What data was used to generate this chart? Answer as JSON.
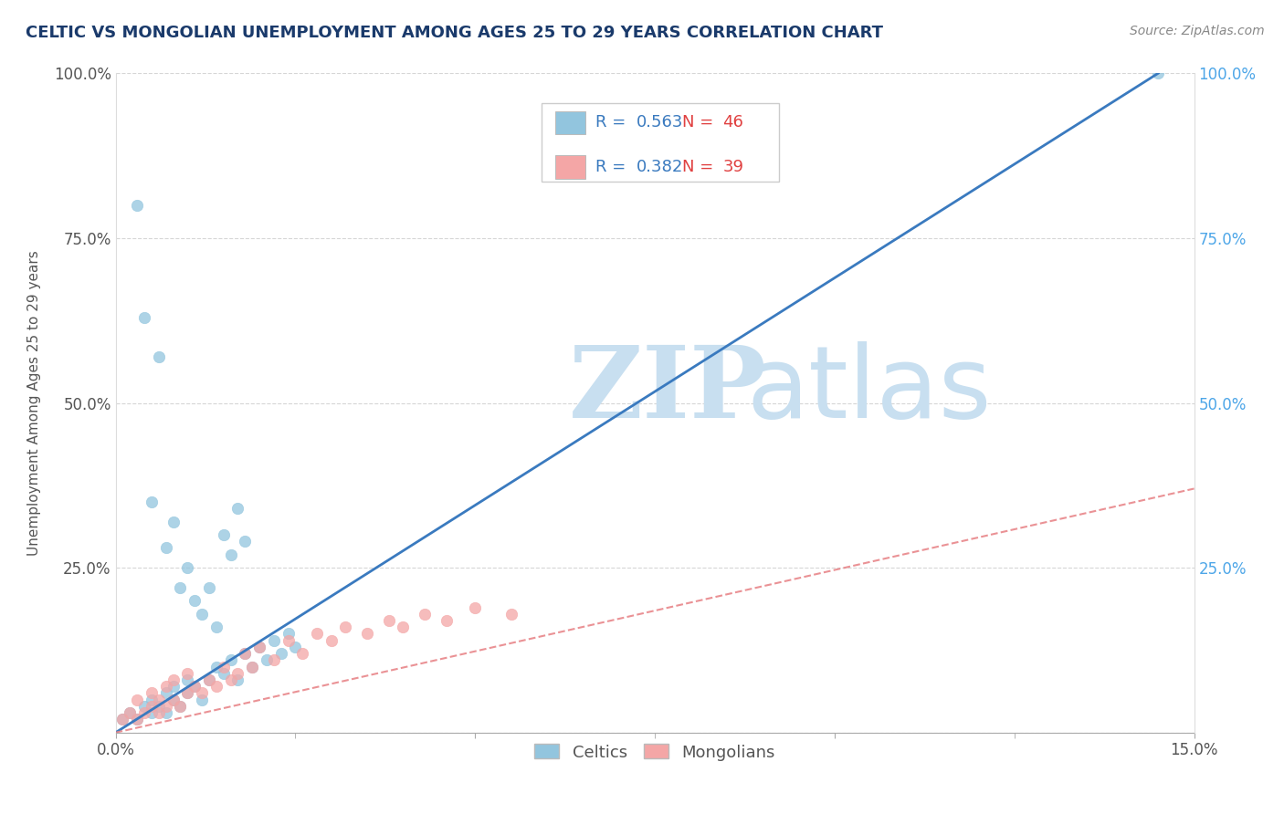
{
  "title": "CELTIC VS MONGOLIAN UNEMPLOYMENT AMONG AGES 25 TO 29 YEARS CORRELATION CHART",
  "source_text": "Source: ZipAtlas.com",
  "ylabel": "Unemployment Among Ages 25 to 29 years",
  "xlim": [
    0.0,
    0.15
  ],
  "ylim": [
    0.0,
    1.0
  ],
  "xtick_positions": [
    0.0,
    0.05,
    0.1,
    0.15
  ],
  "xtick_labels_shown": [
    "0.0%",
    "",
    "",
    "15.0%"
  ],
  "yticks": [
    0.0,
    0.25,
    0.5,
    0.75,
    1.0
  ],
  "ytick_labels_left": [
    "",
    "25.0%",
    "50.0%",
    "75.0%",
    "100.0%"
  ],
  "ytick_labels_right": [
    "",
    "25.0%",
    "50.0%",
    "75.0%",
    "100.0%"
  ],
  "celtic_color": "#92c5de",
  "mongolian_color": "#f4a6a6",
  "celtic_line_color": "#3a7abf",
  "mongolian_line_color": "#e8868a",
  "celtic_R": "0.563",
  "celtic_N": "46",
  "mongolian_R": "0.382",
  "mongolian_N": "39",
  "watermark_zip": "ZIP",
  "watermark_atlas": "atlas",
  "watermark_color": "#c8dff0",
  "background_color": "#ffffff",
  "title_color": "#1a3a6b",
  "title_fontsize": 13,
  "legend_R_color": "#3a7abf",
  "legend_N_color": "#e04040",
  "legend_label1": "Celtics",
  "legend_label2": "Mongolians",
  "celtic_scatter_x": [
    0.001,
    0.002,
    0.003,
    0.004,
    0.005,
    0.005,
    0.006,
    0.007,
    0.007,
    0.008,
    0.008,
    0.009,
    0.01,
    0.01,
    0.011,
    0.012,
    0.013,
    0.014,
    0.015,
    0.016,
    0.017,
    0.018,
    0.019,
    0.02,
    0.021,
    0.022,
    0.023,
    0.024,
    0.025,
    0.003,
    0.004,
    0.005,
    0.006,
    0.007,
    0.008,
    0.009,
    0.01,
    0.011,
    0.012,
    0.013,
    0.014,
    0.015,
    0.016,
    0.017,
    0.018,
    0.145
  ],
  "celtic_scatter_y": [
    0.02,
    0.03,
    0.02,
    0.04,
    0.03,
    0.05,
    0.04,
    0.06,
    0.03,
    0.05,
    0.07,
    0.04,
    0.06,
    0.08,
    0.07,
    0.05,
    0.08,
    0.1,
    0.09,
    0.11,
    0.08,
    0.12,
    0.1,
    0.13,
    0.11,
    0.14,
    0.12,
    0.15,
    0.13,
    0.8,
    0.63,
    0.35,
    0.57,
    0.28,
    0.32,
    0.22,
    0.25,
    0.2,
    0.18,
    0.22,
    0.16,
    0.3,
    0.27,
    0.34,
    0.29,
    1.0
  ],
  "mongolian_scatter_x": [
    0.001,
    0.002,
    0.003,
    0.003,
    0.004,
    0.005,
    0.005,
    0.006,
    0.006,
    0.007,
    0.007,
    0.008,
    0.008,
    0.009,
    0.01,
    0.01,
    0.011,
    0.012,
    0.013,
    0.014,
    0.015,
    0.016,
    0.017,
    0.018,
    0.019,
    0.02,
    0.022,
    0.024,
    0.026,
    0.028,
    0.03,
    0.032,
    0.035,
    0.038,
    0.04,
    0.043,
    0.046,
    0.05,
    0.055
  ],
  "mongolian_scatter_y": [
    0.02,
    0.03,
    0.02,
    0.05,
    0.03,
    0.04,
    0.06,
    0.03,
    0.05,
    0.04,
    0.07,
    0.05,
    0.08,
    0.04,
    0.06,
    0.09,
    0.07,
    0.06,
    0.08,
    0.07,
    0.1,
    0.08,
    0.09,
    0.12,
    0.1,
    0.13,
    0.11,
    0.14,
    0.12,
    0.15,
    0.14,
    0.16,
    0.15,
    0.17,
    0.16,
    0.18,
    0.17,
    0.19,
    0.18
  ],
  "celtic_line_x": [
    0.0,
    0.145
  ],
  "celtic_line_y": [
    0.0,
    1.0
  ],
  "mongol_line_x": [
    0.0,
    0.15
  ],
  "mongol_line_y": [
    0.0,
    0.37
  ]
}
